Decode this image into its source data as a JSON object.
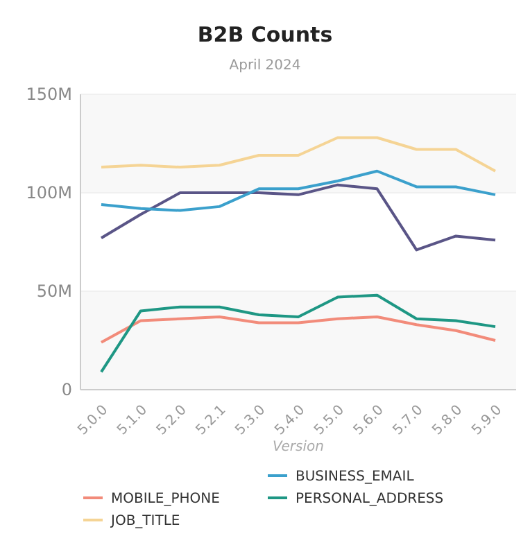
{
  "chart_data": {
    "type": "line",
    "title": "B2B Counts",
    "subtitle": "April 2024",
    "xlabel": "Version",
    "categories": [
      "5.0.0",
      "5.1.0",
      "5.2.0",
      "5.2.1",
      "5.3.0",
      "5.4.0",
      "5.5.0",
      "5.6.0",
      "5.7.0",
      "5.8.0",
      "5.9.0"
    ],
    "series": [
      {
        "color": "#5a5587",
        "values": [
          77,
          89,
          100,
          100,
          100,
          99,
          104,
          102,
          71,
          78,
          76
        ]
      },
      {
        "name": "BUSINESS_EMAIL",
        "color": "#3ba0cc",
        "values": [
          94,
          92,
          91,
          93,
          102,
          102,
          106,
          111,
          103,
          103,
          99
        ]
      },
      {
        "name": "MOBILE_PHONE",
        "color": "#f28b7a",
        "values": [
          24,
          35,
          36,
          37,
          34,
          34,
          36,
          37,
          33,
          30,
          25
        ]
      },
      {
        "name": "PERSONAL_ADDRESS",
        "color": "#1e9784",
        "values": [
          9,
          40,
          42,
          42,
          38,
          37,
          47,
          48,
          36,
          35,
          32
        ]
      },
      {
        "name": "JOB_TITLE",
        "color": "#f5d495",
        "values": [
          113,
          114,
          113,
          114,
          119,
          119,
          128,
          128,
          122,
          122,
          111
        ]
      }
    ],
    "ylim": [
      0,
      150
    ],
    "yticks": [
      {
        "value": 0,
        "label": "0"
      },
      {
        "value": 50,
        "label": "50M"
      },
      {
        "value": 100,
        "label": "100M"
      },
      {
        "value": 150,
        "label": "150M"
      }
    ],
    "grid": "y",
    "legend": "bottom",
    "line_style": "solid",
    "marker": "none"
  }
}
